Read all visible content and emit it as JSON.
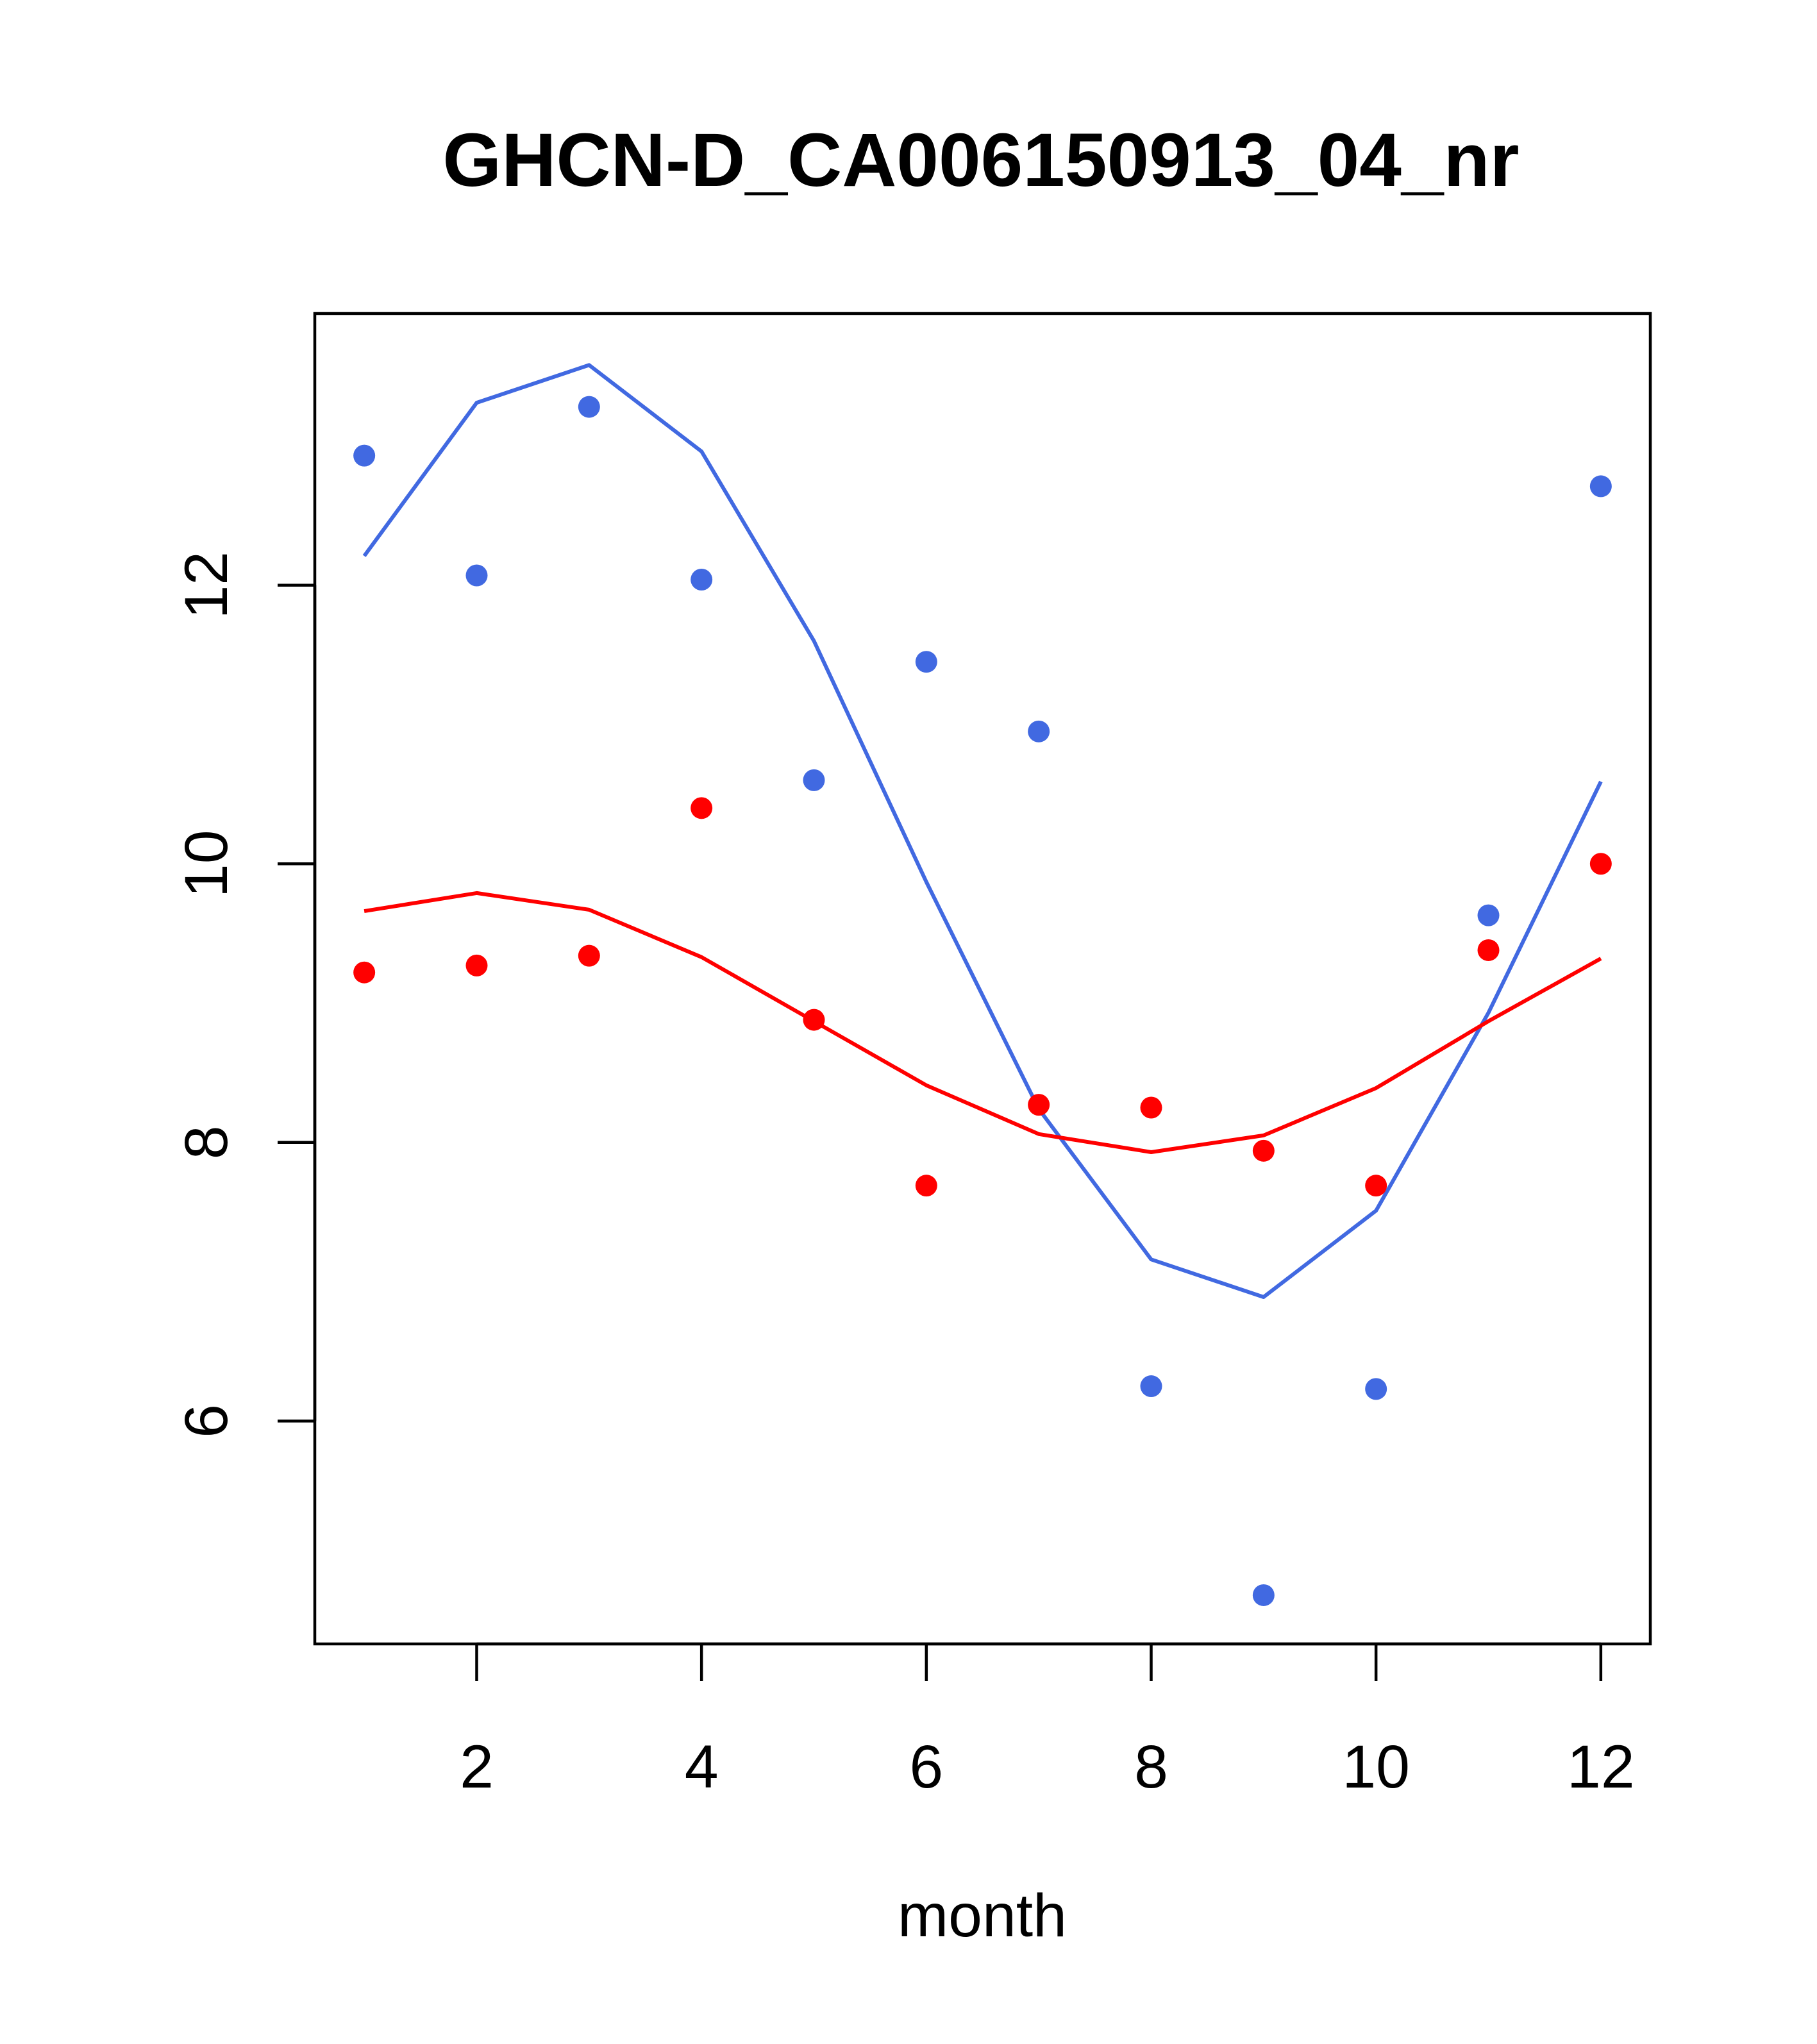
{
  "chart_data": {
    "type": "scatter",
    "title": "GHCN-D_CA006150913_04_nr",
    "xlabel": "month",
    "ylabel": "",
    "xlim": [
      0.56,
      12.44
    ],
    "ylim": [
      4.4,
      13.95
    ],
    "x_ticks": [
      "2",
      "4",
      "6",
      "8",
      "10",
      "12"
    ],
    "y_ticks": [
      "6",
      "8",
      "10",
      "12"
    ],
    "grid": false,
    "legend": "none",
    "x": [
      1,
      2,
      3,
      4,
      5,
      6,
      7,
      8,
      9,
      10,
      11,
      12
    ],
    "series": [
      {
        "color": "#4169E1",
        "points": [
          12.93,
          12.07,
          13.28,
          12.04,
          10.6,
          11.45,
          10.95,
          6.25,
          4.75,
          6.23,
          9.63,
          12.71
        ],
        "line": [
          12.21,
          13.31,
          13.58,
          12.96,
          11.6,
          9.87,
          8.24,
          7.16,
          6.89,
          7.51,
          8.93,
          10.59
        ]
      },
      {
        "color": "#FF0000",
        "points": [
          9.22,
          9.27,
          9.34,
          10.4,
          8.88,
          7.69,
          8.27,
          8.25,
          7.94,
          7.69,
          9.38,
          10.0
        ],
        "line": [
          9.66,
          9.79,
          9.67,
          9.33,
          8.87,
          8.41,
          8.06,
          7.93,
          8.05,
          8.39,
          8.87,
          9.32
        ]
      }
    ]
  }
}
